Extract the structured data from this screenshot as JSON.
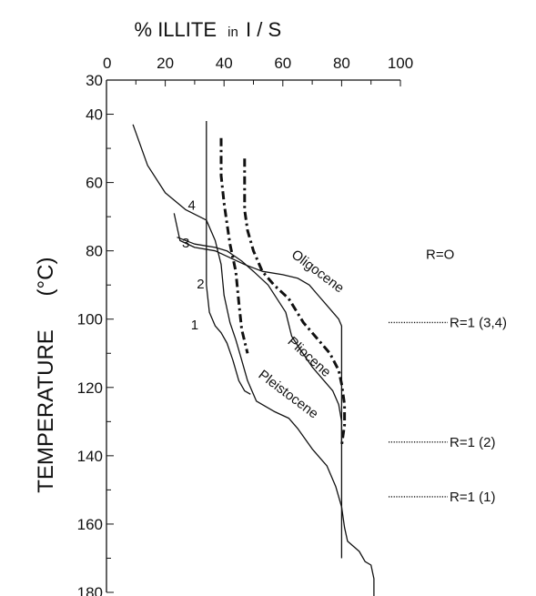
{
  "chart_data": {
    "type": "line",
    "title": "% ILLITE in I / S",
    "title_parts": {
      "pre": "% ILLITE",
      "mid": "in",
      "post": "I / S"
    },
    "xlabel": "% ILLITE in I / S",
    "ylabel": "TEMPERATURE (°C)",
    "ylabel_parts": {
      "main": "TEMPERATURE",
      "unit": "(°C)"
    },
    "x_axis_position": "top",
    "y_inverted": true,
    "xlim": [
      0,
      100
    ],
    "ylim": [
      30,
      180
    ],
    "x_ticks": [
      0,
      20,
      40,
      60,
      80,
      100
    ],
    "y_ticks": [
      30,
      40,
      60,
      80,
      100,
      120,
      140,
      160,
      180
    ],
    "grid": false,
    "series": [
      {
        "name": "Pleistocene",
        "style": "solid",
        "points": [
          [
            9,
            43
          ],
          [
            14,
            55
          ],
          [
            20,
            63
          ],
          [
            27,
            68
          ],
          [
            34,
            71
          ],
          [
            37,
            77
          ],
          [
            39,
            84
          ],
          [
            40,
            93
          ],
          [
            42,
            101
          ],
          [
            44,
            106
          ],
          [
            46,
            112
          ],
          [
            48,
            118
          ],
          [
            51,
            124
          ],
          [
            57,
            127
          ],
          [
            62,
            129
          ],
          [
            65,
            132
          ],
          [
            70,
            138
          ],
          [
            75,
            143
          ],
          [
            78,
            149
          ],
          [
            80,
            155
          ],
          [
            81,
            161
          ],
          [
            82,
            165
          ],
          [
            86,
            168
          ],
          [
            88,
            171
          ],
          [
            90,
            172
          ],
          [
            91,
            176
          ],
          [
            91,
            182
          ]
        ]
      },
      {
        "name": "Pliocene",
        "style": "solid",
        "points": [
          [
            24,
            76
          ],
          [
            30,
            78
          ],
          [
            37,
            79
          ],
          [
            41,
            80
          ],
          [
            46,
            83
          ],
          [
            50,
            86
          ],
          [
            55,
            90
          ],
          [
            58,
            94
          ],
          [
            61,
            98
          ],
          [
            63,
            105
          ],
          [
            66,
            109
          ],
          [
            70,
            114
          ],
          [
            74,
            118
          ],
          [
            77,
            121
          ],
          [
            79,
            125
          ],
          [
            80,
            130
          ],
          [
            80,
            136
          ]
        ]
      },
      {
        "name": "Oligocene",
        "style": "solid",
        "points": [
          [
            23,
            69
          ],
          [
            25,
            77
          ],
          [
            30,
            79
          ],
          [
            37,
            80
          ],
          [
            42,
            82
          ],
          [
            47,
            84
          ],
          [
            53,
            86
          ],
          [
            60,
            87
          ],
          [
            65,
            88
          ],
          [
            69,
            90
          ],
          [
            72,
            93
          ],
          [
            75,
            96
          ],
          [
            79,
            100
          ],
          [
            80,
            102
          ],
          [
            80,
            170
          ]
        ]
      },
      {
        "name": "1",
        "style": "solid",
        "points": [
          [
            34,
            42
          ],
          [
            34,
            90
          ],
          [
            35,
            98
          ],
          [
            37,
            102
          ],
          [
            39,
            104
          ],
          [
            41,
            107
          ],
          [
            43,
            112
          ],
          [
            45,
            118
          ],
          [
            47,
            121
          ],
          [
            49,
            122
          ]
        ]
      },
      {
        "name": "dash-dot-1",
        "style": "dashdot",
        "points": [
          [
            39,
            47
          ],
          [
            39,
            58
          ],
          [
            40,
            66
          ],
          [
            41,
            72
          ],
          [
            42,
            78
          ],
          [
            44,
            86
          ],
          [
            45,
            95
          ],
          [
            46,
            103
          ],
          [
            48,
            110
          ]
        ]
      },
      {
        "name": "dash-dot-2",
        "style": "dashdot",
        "points": [
          [
            47,
            53
          ],
          [
            47,
            60
          ],
          [
            47,
            68
          ],
          [
            48,
            74
          ],
          [
            50,
            80
          ],
          [
            53,
            86
          ],
          [
            57,
            90
          ],
          [
            62,
            94
          ],
          [
            67,
            101
          ],
          [
            72,
            106
          ],
          [
            76,
            110
          ],
          [
            79,
            115
          ],
          [
            80,
            119
          ],
          [
            81,
            125
          ],
          [
            81,
            131
          ],
          [
            80,
            137
          ]
        ]
      }
    ],
    "curve_labels": [
      {
        "text": "4",
        "x": 29,
        "y": 68
      },
      {
        "text": "3",
        "x": 27,
        "y": 79
      },
      {
        "text": "2",
        "x": 32,
        "y": 91
      },
      {
        "text": "1",
        "x": 30,
        "y": 103
      }
    ],
    "era_labels": [
      {
        "text": "Oligocene",
        "x": 71,
        "y": 87,
        "rotate": 37
      },
      {
        "text": "Pliocene",
        "x": 68,
        "y": 112,
        "rotate": 42
      },
      {
        "text": "Pleistocene",
        "x": 61,
        "y": 123,
        "rotate": 37
      }
    ],
    "r_labels": [
      {
        "text": "R=O",
        "y": 81,
        "dotted": false
      },
      {
        "text": "R=1 (3,4)",
        "y": 101,
        "dotted": true
      },
      {
        "text": "R=1 (2)",
        "y": 136,
        "dotted": true
      },
      {
        "text": "R=1 (1)",
        "y": 152,
        "dotted": true
      }
    ]
  }
}
